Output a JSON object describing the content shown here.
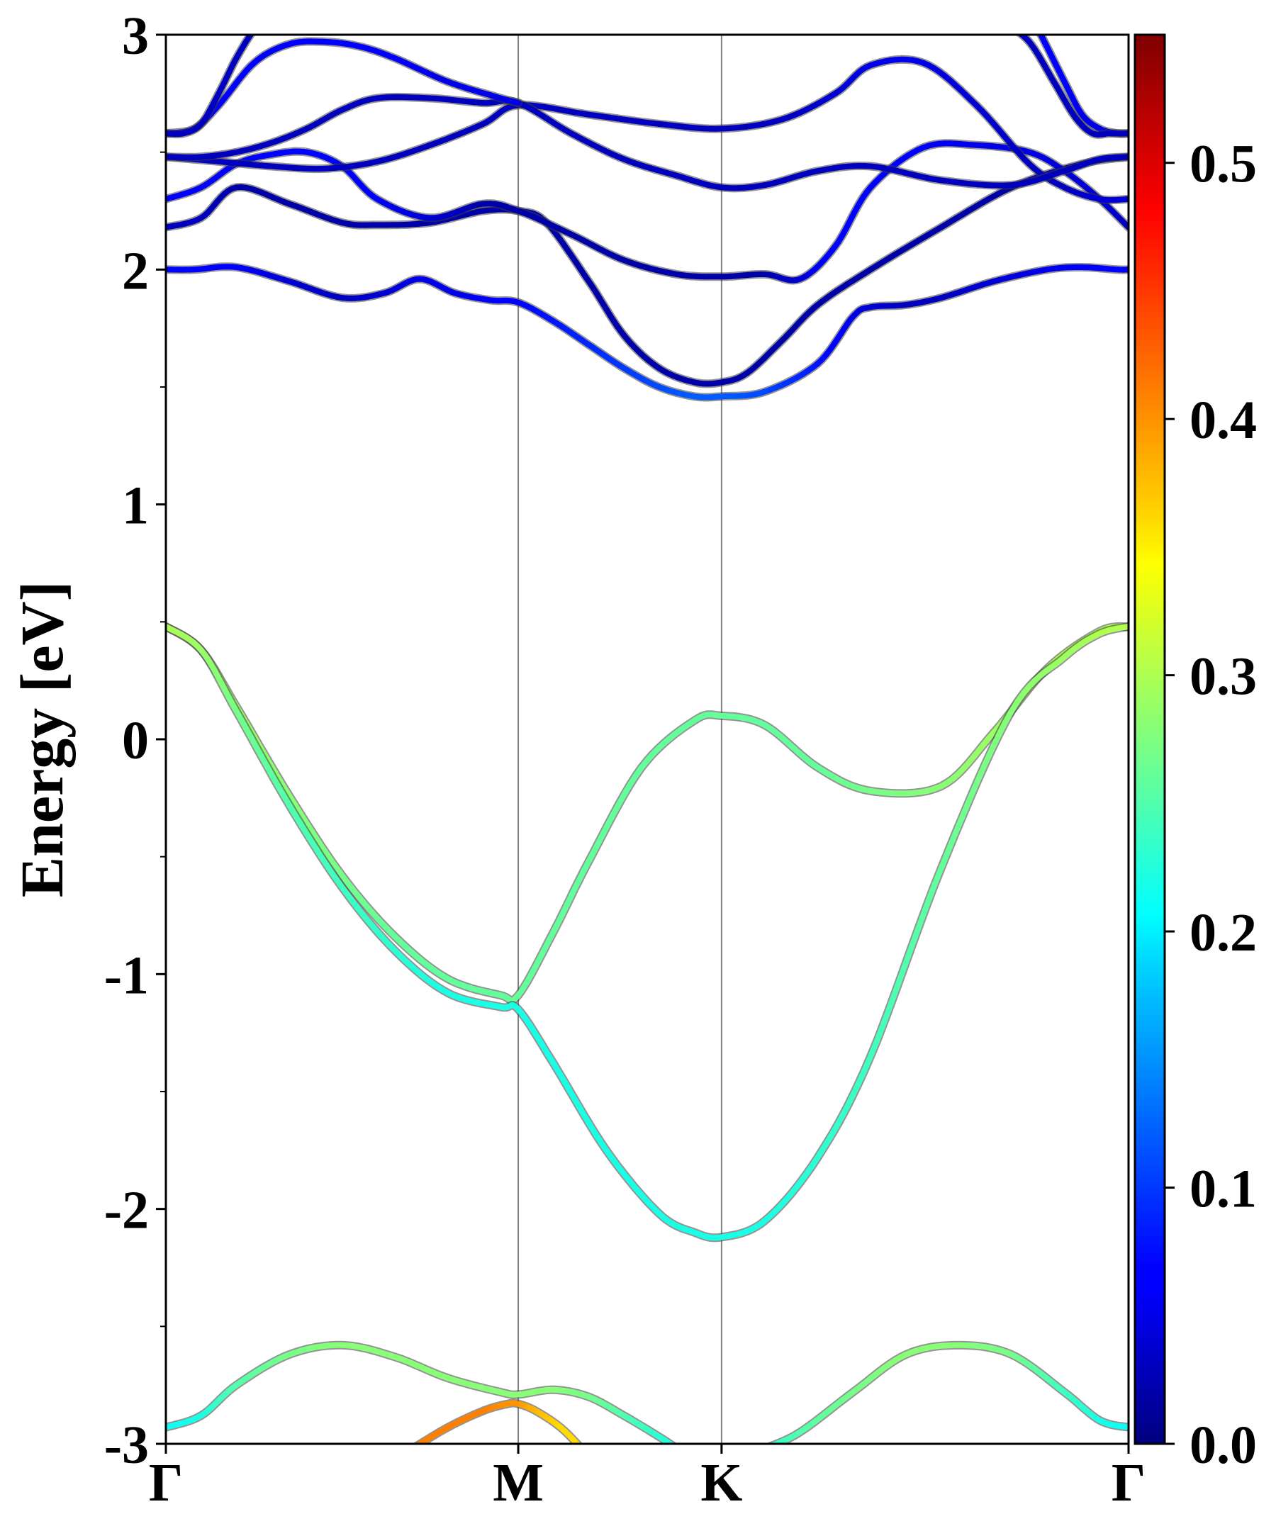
{
  "chart_data": {
    "type": "line",
    "title": "",
    "ylabel": "Energy [eV]",
    "xlabel": "",
    "ylim": [
      -3,
      3
    ],
    "y_ticks": [
      "-3",
      "-2",
      "-1",
      "0",
      "1",
      "2",
      "3"
    ],
    "y_tick_values": [
      -3,
      -2,
      -1,
      0,
      1,
      2,
      3
    ],
    "y_minor_ticks": [
      -2.5,
      -1.5,
      -0.5,
      0.5,
      1.5,
      2.5
    ],
    "x_ticks": [
      {
        "label": "Γ",
        "k": 0.0
      },
      {
        "label": "M",
        "k": 1.0
      },
      {
        "label": "K",
        "k": 1.577
      },
      {
        "label": "Γ",
        "k": 2.732
      }
    ],
    "xlim": [
      0,
      2.732
    ],
    "colorbar": {
      "cmap": "jet",
      "range": [
        0.0,
        0.55
      ],
      "ticks": [
        "0.0",
        "0.1",
        "0.2",
        "0.3",
        "0.4",
        "0.5"
      ],
      "tick_values": [
        0.0,
        0.1,
        0.2,
        0.3,
        0.4,
        0.5
      ]
    },
    "series": [
      {
        "k": [
          0,
          0.08,
          0.2,
          0.35,
          0.5,
          0.62,
          0.72,
          0.82,
          0.92,
          1.0,
          1.1,
          1.2,
          1.3,
          1.4,
          1.5,
          1.577,
          1.7,
          1.85,
          1.95,
          2.0,
          2.1,
          2.2,
          2.35,
          2.5,
          2.6,
          2.7,
          2.732
        ],
        "E": [
          2.0,
          2.0,
          2.01,
          1.95,
          1.88,
          1.9,
          1.96,
          1.9,
          1.87,
          1.86,
          1.78,
          1.68,
          1.58,
          1.5,
          1.46,
          1.46,
          1.48,
          1.6,
          1.8,
          1.84,
          1.85,
          1.88,
          1.95,
          2.0,
          2.01,
          2.0,
          2.0
        ],
        "w": [
          0.07,
          0.07,
          0.06,
          0.04,
          0.03,
          0.04,
          0.05,
          0.05,
          0.06,
          0.07,
          0.08,
          0.09,
          0.1,
          0.11,
          0.12,
          0.12,
          0.11,
          0.08,
          0.05,
          0.04,
          0.03,
          0.03,
          0.04,
          0.05,
          0.06,
          0.07,
          0.07
        ]
      },
      {
        "k": [
          0,
          0.1,
          0.2,
          0.35,
          0.5,
          0.6,
          0.75,
          0.9,
          1.0,
          1.08,
          1.2,
          1.3,
          1.4,
          1.5,
          1.577,
          1.65,
          1.75,
          1.85,
          2.0,
          2.2,
          2.4,
          2.6,
          2.732
        ],
        "E": [
          2.18,
          2.22,
          2.35,
          2.28,
          2.2,
          2.19,
          2.2,
          2.25,
          2.25,
          2.2,
          1.95,
          1.72,
          1.58,
          1.52,
          1.52,
          1.56,
          1.7,
          1.85,
          2.0,
          2.18,
          2.35,
          2.45,
          2.48
        ],
        "w": [
          0.03,
          0.03,
          0.02,
          0.02,
          0.02,
          0.02,
          0.02,
          0.02,
          0.02,
          0.02,
          0.02,
          0.02,
          0.02,
          0.02,
          0.02,
          0.02,
          0.02,
          0.02,
          0.02,
          0.02,
          0.02,
          0.02,
          0.02
        ]
      },
      {
        "k": [
          0,
          0.1,
          0.2,
          0.3,
          0.4,
          0.5,
          0.6,
          0.75,
          0.9,
          1.0,
          1.15,
          1.3,
          1.45,
          1.577,
          1.7,
          1.8,
          1.9,
          2.0,
          2.15,
          2.3,
          2.45,
          2.55,
          2.65,
          2.732
        ],
        "E": [
          2.3,
          2.35,
          2.45,
          2.49,
          2.5,
          2.44,
          2.3,
          2.22,
          2.28,
          2.25,
          2.15,
          2.04,
          1.98,
          1.97,
          1.98,
          1.96,
          2.1,
          2.35,
          2.52,
          2.53,
          2.5,
          2.42,
          2.3,
          2.18
        ],
        "w": [
          0.06,
          0.06,
          0.07,
          0.07,
          0.07,
          0.07,
          0.06,
          0.04,
          0.02,
          0.02,
          0.02,
          0.02,
          0.02,
          0.02,
          0.02,
          0.04,
          0.07,
          0.07,
          0.06,
          0.05,
          0.05,
          0.04,
          0.04,
          0.03
        ]
      },
      {
        "k": [
          0,
          0.15,
          0.3,
          0.45,
          0.6,
          0.75,
          0.9,
          1.0,
          1.2,
          1.4,
          1.577,
          1.75,
          1.9,
          2.0,
          2.15,
          2.3,
          2.45,
          2.55,
          2.65,
          2.732
        ],
        "E": [
          2.48,
          2.46,
          2.44,
          2.43,
          2.46,
          2.53,
          2.62,
          2.7,
          2.66,
          2.62,
          2.6,
          2.64,
          2.75,
          2.87,
          2.88,
          2.7,
          2.45,
          2.35,
          2.3,
          2.3
        ],
        "w": [
          0.03,
          0.03,
          0.03,
          0.03,
          0.03,
          0.03,
          0.03,
          0.03,
          0.03,
          0.03,
          0.03,
          0.03,
          0.04,
          0.05,
          0.05,
          0.04,
          0.03,
          0.03,
          0.04,
          0.04
        ]
      },
      {
        "k": [
          0,
          0.1,
          0.2,
          0.3,
          0.4,
          0.5,
          0.6,
          0.75,
          0.9,
          1.0,
          1.15,
          1.3,
          1.45,
          1.577,
          1.7,
          1.85,
          2.0,
          2.2,
          2.4,
          2.55,
          2.65,
          2.732
        ],
        "E": [
          2.48,
          2.48,
          2.5,
          2.54,
          2.6,
          2.68,
          2.73,
          2.73,
          2.71,
          2.71,
          2.58,
          2.47,
          2.4,
          2.35,
          2.36,
          2.42,
          2.44,
          2.38,
          2.36,
          2.42,
          2.47,
          2.48
        ],
        "w": [
          0.03,
          0.03,
          0.03,
          0.03,
          0.03,
          0.03,
          0.03,
          0.03,
          0.03,
          0.03,
          0.03,
          0.03,
          0.03,
          0.03,
          0.03,
          0.03,
          0.03,
          0.03,
          0.03,
          0.03,
          0.03,
          0.03
        ]
      },
      {
        "k": [
          0,
          0.08,
          0.15,
          0.25,
          0.35,
          0.45,
          0.55,
          0.65,
          0.8,
          0.95,
          1.0
        ],
        "E": [
          2.58,
          2.6,
          2.7,
          2.88,
          2.96,
          2.97,
          2.95,
          2.9,
          2.8,
          2.73,
          2.71
        ],
        "w": [
          0.05,
          0.05,
          0.06,
          0.06,
          0.06,
          0.06,
          0.06,
          0.06,
          0.05,
          0.05,
          0.05
        ]
      },
      {
        "k": [
          0,
          0.05,
          0.1,
          0.15,
          0.2,
          0.25,
          0.3
        ],
        "E": [
          2.58,
          2.58,
          2.62,
          2.75,
          2.9,
          3.02,
          3.1
        ],
        "w": [
          0.03,
          0.03,
          0.03,
          0.03,
          0.03,
          0.03,
          0.03
        ]
      },
      {
        "k": [
          2.45,
          2.5,
          2.55,
          2.6,
          2.65,
          2.7,
          2.732
        ],
        "E": [
          3.1,
          2.95,
          2.8,
          2.66,
          2.6,
          2.58,
          2.58
        ],
        "w": [
          0.06,
          0.06,
          0.06,
          0.05,
          0.05,
          0.05,
          0.05
        ]
      },
      {
        "k": [
          2.38,
          2.45,
          2.52,
          2.58,
          2.63,
          2.68,
          2.732
        ],
        "E": [
          3.05,
          2.97,
          2.8,
          2.65,
          2.58,
          2.58,
          2.58
        ],
        "w": [
          0.03,
          0.03,
          0.03,
          0.03,
          0.03,
          0.03,
          0.03
        ]
      },
      {
        "k": [
          0,
          0.1,
          0.2,
          0.35,
          0.5,
          0.65,
          0.8,
          0.95,
          1.0,
          1.1,
          1.2,
          1.35,
          1.5,
          1.577,
          1.7,
          1.85,
          2.0,
          2.2,
          2.35,
          2.5,
          2.65,
          2.732
        ],
        "E": [
          0.48,
          0.38,
          0.14,
          -0.24,
          -0.58,
          -0.84,
          -1.02,
          -1.09,
          -1.09,
          -0.82,
          -0.52,
          -0.12,
          0.08,
          0.1,
          0.06,
          -0.12,
          -0.22,
          -0.2,
          0.03,
          0.3,
          0.46,
          0.48
        ],
        "w": [
          0.3,
          0.3,
          0.29,
          0.28,
          0.27,
          0.26,
          0.26,
          0.26,
          0.26,
          0.26,
          0.26,
          0.26,
          0.26,
          0.26,
          0.26,
          0.26,
          0.27,
          0.28,
          0.29,
          0.3,
          0.3,
          0.3
        ]
      },
      {
        "k": [
          0,
          0.1,
          0.2,
          0.35,
          0.5,
          0.65,
          0.8,
          0.95,
          1.0,
          1.1,
          1.25,
          1.4,
          1.5,
          1.577,
          1.7,
          1.85,
          2.0,
          2.2,
          2.4,
          2.55,
          2.65,
          2.732
        ],
        "E": [
          0.48,
          0.38,
          0.12,
          -0.28,
          -0.63,
          -0.9,
          -1.08,
          -1.14,
          -1.15,
          -1.38,
          -1.75,
          -2.02,
          -2.1,
          -2.12,
          -2.05,
          -1.78,
          -1.35,
          -0.55,
          0.12,
          0.35,
          0.45,
          0.48
        ],
        "w": [
          0.3,
          0.29,
          0.27,
          0.25,
          0.24,
          0.23,
          0.22,
          0.22,
          0.22,
          0.22,
          0.22,
          0.22,
          0.22,
          0.22,
          0.22,
          0.23,
          0.24,
          0.26,
          0.28,
          0.29,
          0.3,
          0.3
        ]
      },
      {
        "k": [
          0,
          0.1,
          0.2,
          0.35,
          0.5,
          0.65,
          0.8,
          0.95,
          1.0,
          1.1,
          1.2,
          1.3,
          1.4,
          1.45
        ],
        "E": [
          -2.93,
          -2.88,
          -2.75,
          -2.62,
          -2.58,
          -2.63,
          -2.72,
          -2.78,
          -2.79,
          -2.77,
          -2.8,
          -2.88,
          -2.97,
          -3.02
        ],
        "w": [
          0.21,
          0.22,
          0.25,
          0.27,
          0.28,
          0.28,
          0.28,
          0.28,
          0.28,
          0.28,
          0.27,
          0.25,
          0.23,
          0.22
        ]
      },
      {
        "k": [
          1.7,
          1.8,
          1.95,
          2.1,
          2.25,
          2.4,
          2.55,
          2.65,
          2.732
        ],
        "E": [
          -3.02,
          -2.95,
          -2.78,
          -2.62,
          -2.58,
          -2.62,
          -2.78,
          -2.9,
          -2.93
        ],
        "w": [
          0.22,
          0.25,
          0.27,
          0.28,
          0.28,
          0.27,
          0.24,
          0.22,
          0.21
        ]
      },
      {
        "k": [
          0.7,
          0.8,
          0.9,
          0.97,
          1.0,
          1.05,
          1.12,
          1.18
        ],
        "E": [
          -3.02,
          -2.93,
          -2.86,
          -2.83,
          -2.83,
          -2.86,
          -2.93,
          -3.02
        ],
        "w": [
          0.41,
          0.41,
          0.41,
          0.4,
          0.4,
          0.38,
          0.36,
          0.36
        ]
      }
    ]
  }
}
